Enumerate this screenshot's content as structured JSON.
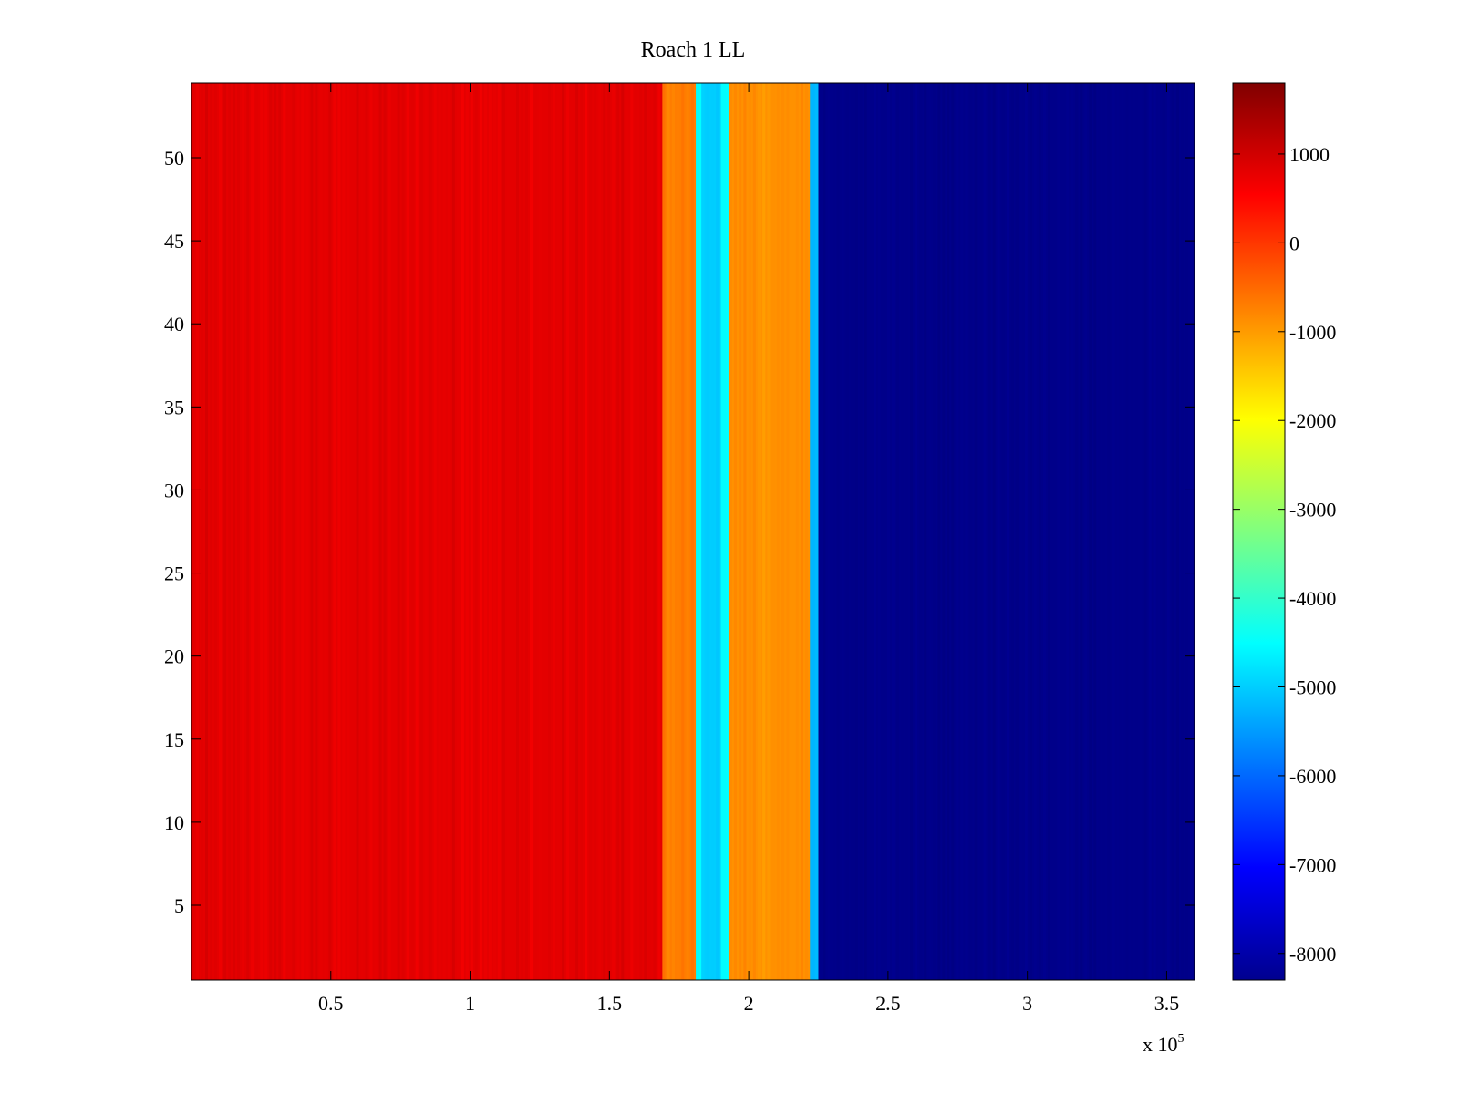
{
  "chart_data": {
    "type": "heatmap",
    "title": "Roach 1 LL",
    "xlabel": "",
    "ylabel": "",
    "x_exponent_label": {
      "base": "x 10",
      "exponent": "5"
    },
    "x_range": [
      0,
      3.6
    ],
    "y_range": [
      0.5,
      54.5
    ],
    "x_ticks": [
      0.5,
      1,
      1.5,
      2,
      2.5,
      3,
      3.5
    ],
    "x_tick_labels": [
      "0.5",
      "1",
      "1.5",
      "2",
      "2.5",
      "3",
      "3.5"
    ],
    "y_ticks": [
      5,
      10,
      15,
      20,
      25,
      30,
      35,
      40,
      45,
      50
    ],
    "y_tick_labels": [
      "5",
      "10",
      "15",
      "20",
      "25",
      "30",
      "35",
      "40",
      "45",
      "50"
    ],
    "colorbar": {
      "colormap": "jet",
      "range": [
        -8300,
        1800
      ],
      "ticks": [
        1000,
        0,
        -1000,
        -2000,
        -3000,
        -4000,
        -5000,
        -6000,
        -7000,
        -8000
      ],
      "tick_labels": [
        "1000",
        "0",
        "-1000",
        "-2000",
        "-3000",
        "-4000",
        "-5000",
        "-6000",
        "-7000",
        "-8000"
      ]
    },
    "regions": [
      {
        "x_start": 0,
        "x_end": 1.69,
        "value": 800
      },
      {
        "x_start": 1.69,
        "x_end": 1.81,
        "value": -700
      },
      {
        "x_start": 1.81,
        "x_end": 1.83,
        "value": -4500
      },
      {
        "x_start": 1.83,
        "x_end": 1.9,
        "value": -5000
      },
      {
        "x_start": 1.9,
        "x_end": 1.93,
        "value": -4500
      },
      {
        "x_start": 1.93,
        "x_end": 2.22,
        "value": -900
      },
      {
        "x_start": 2.22,
        "x_end": 2.25,
        "value": -5200
      },
      {
        "x_start": 2.25,
        "x_end": 3.6,
        "value": -8200
      }
    ],
    "grid": false,
    "legend": "colorbar-right"
  }
}
